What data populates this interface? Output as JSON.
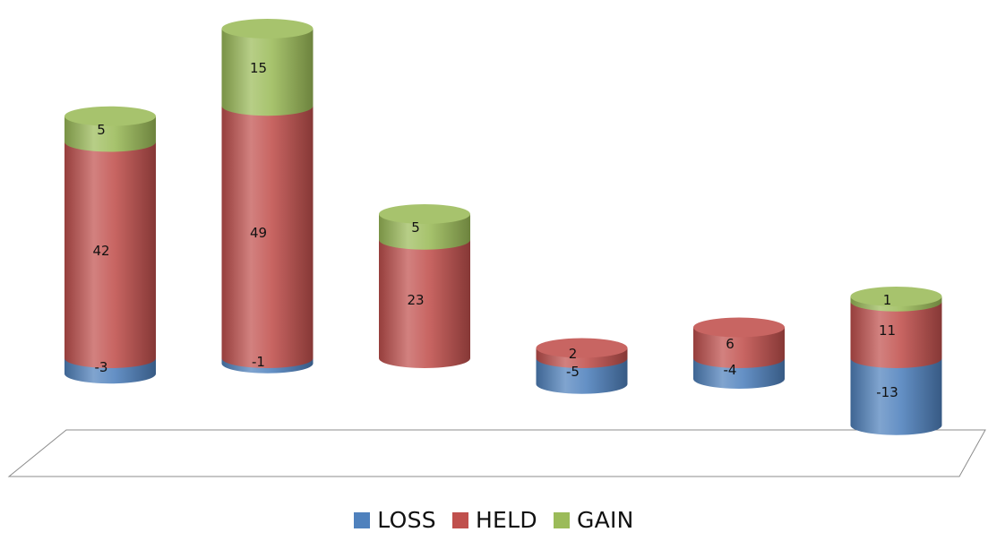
{
  "chart_data": {
    "type": "bar",
    "stacked": true,
    "style": "3d-cylinder",
    "categories": [
      "",
      "",
      "",
      "",
      "",
      ""
    ],
    "series": [
      {
        "name": "LOSS",
        "color": "#4f81bd",
        "values": [
          -3,
          -1,
          0,
          -5,
          -4,
          -13
        ]
      },
      {
        "name": "HELD",
        "color": "#c0504d",
        "values": [
          42,
          49,
          23,
          2,
          6,
          11
        ]
      },
      {
        "name": "GAIN",
        "color": "#9bbb59",
        "values": [
          5,
          15,
          5,
          0,
          0,
          1
        ]
      }
    ],
    "legend_position": "bottom",
    "grid": false,
    "data_labels": true
  },
  "legend": {
    "items": [
      {
        "label": "LOSS",
        "color": "#4f81bd"
      },
      {
        "label": "HELD",
        "color": "#c0504d"
      },
      {
        "label": "GAIN",
        "color": "#9bbb59"
      }
    ]
  }
}
